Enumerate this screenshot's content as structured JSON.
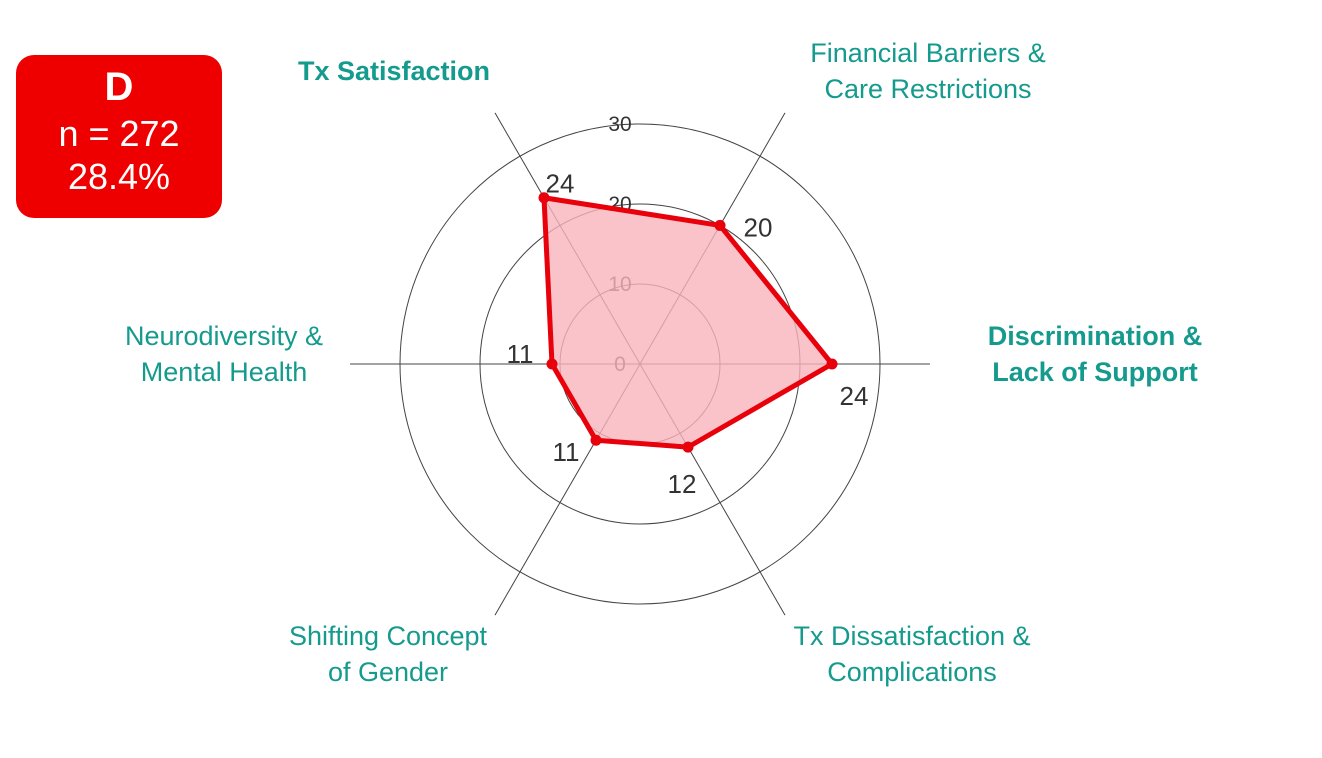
{
  "group": {
    "letter": "D",
    "n_label": "n = 272",
    "percent": "28.4%"
  },
  "chart_data": {
    "type": "radar",
    "title": "",
    "rmax": 30,
    "ring_ticks": [
      {
        "value": 0,
        "label": "0"
      },
      {
        "value": 10,
        "label": "10"
      },
      {
        "value": 20,
        "label": "20"
      },
      {
        "value": 30,
        "label": "30"
      }
    ],
    "categories": [
      {
        "key": "tx-satisfaction",
        "lines": [
          "Tx Satisfaction"
        ],
        "value": 24,
        "value_label": "24",
        "bold": true
      },
      {
        "key": "financial-barriers",
        "lines": [
          "Financial Barriers &",
          "Care Restrictions"
        ],
        "value": 20,
        "value_label": "20",
        "bold": false
      },
      {
        "key": "discrimination",
        "lines": [
          "Discrimination &",
          "Lack of Support"
        ],
        "value": 24,
        "value_label": "24",
        "bold": true
      },
      {
        "key": "tx-dissatisfaction",
        "lines": [
          "Tx Dissatisfaction &",
          "Complications"
        ],
        "value": 12,
        "value_label": "12",
        "bold": false
      },
      {
        "key": "shifting-concept",
        "lines": [
          "Shifting Concept",
          "of Gender"
        ],
        "value": 11,
        "value_label": "11",
        "bold": false
      },
      {
        "key": "neurodiversity",
        "lines": [
          "Neurodiversity &",
          "Mental Health"
        ],
        "value": 11,
        "value_label": "11",
        "bold": false
      }
    ],
    "colors": {
      "line": "#e8000b",
      "fill": "#f8b4bc",
      "grid": "#444444",
      "label": "#159a8e"
    }
  }
}
